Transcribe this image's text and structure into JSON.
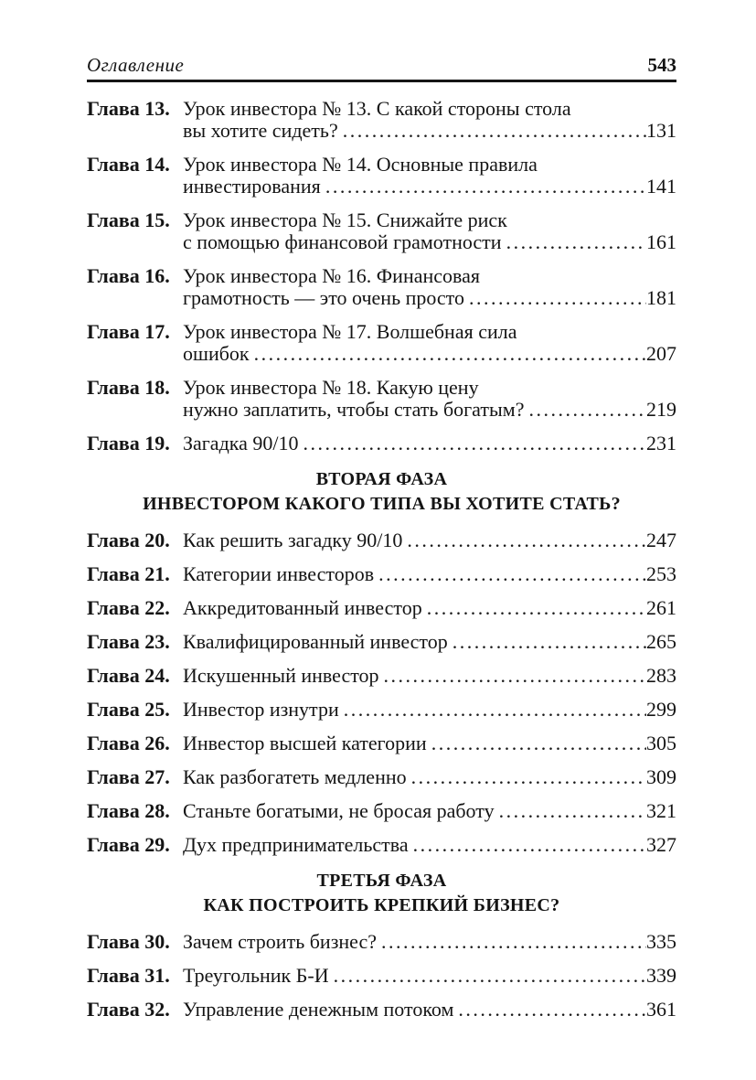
{
  "colors": {
    "page_background": "#ffffff",
    "text": "#141414",
    "header_rule": "#151515"
  },
  "header": {
    "running_title": "Оглавление",
    "page_number": "543"
  },
  "toc": {
    "items": [
      {
        "type": "entry",
        "label": "Глава 13.",
        "lines": [
          "Урок инвестора № 13. С какой стороны стола",
          "вы хотите сидеть?"
        ],
        "page": "131"
      },
      {
        "type": "entry",
        "label": "Глава 14.",
        "lines": [
          "Урок инвестора № 14. Основные правила",
          "инвестирования"
        ],
        "page": "141"
      },
      {
        "type": "entry",
        "label": "Глава 15.",
        "lines": [
          "Урок инвестора № 15. Снижайте риск",
          "с помощью финансовой грамотности"
        ],
        "page": "161"
      },
      {
        "type": "entry",
        "label": "Глава 16.",
        "lines": [
          "Урок инвестора № 16. Финансовая",
          "грамотность — это очень просто"
        ],
        "page": "181"
      },
      {
        "type": "entry",
        "label": "Глава 17.",
        "lines": [
          "Урок инвестора № 17. Волшебная сила",
          "ошибок"
        ],
        "page": "207"
      },
      {
        "type": "entry",
        "label": "Глава 18.",
        "lines": [
          "Урок инвестора № 18. Какую цену",
          "нужно заплатить, чтобы стать богатым?"
        ],
        "page": "219"
      },
      {
        "type": "entry",
        "label": "Глава 19.",
        "lines": [
          "Загадка 90/10"
        ],
        "page": "231"
      },
      {
        "type": "section",
        "lines": [
          "ВТОРАЯ ФАЗА",
          "ИНВЕСТОРОМ КАКОГО ТИПА ВЫ ХОТИТЕ СТАТЬ?"
        ]
      },
      {
        "type": "entry",
        "label": "Глава 20.",
        "lines": [
          "Как решить загадку 90/10"
        ],
        "page": "247"
      },
      {
        "type": "entry",
        "label": "Глава 21.",
        "lines": [
          "Категории инвесторов"
        ],
        "page": "253"
      },
      {
        "type": "entry",
        "label": "Глава 22.",
        "lines": [
          "Аккредитованный инвестор"
        ],
        "page": "261"
      },
      {
        "type": "entry",
        "label": "Глава 23.",
        "lines": [
          "Квалифицированный инвестор"
        ],
        "page": "265"
      },
      {
        "type": "entry",
        "label": "Глава 24.",
        "lines": [
          "Искушенный инвестор"
        ],
        "page": "283"
      },
      {
        "type": "entry",
        "label": "Глава 25.",
        "lines": [
          "Инвестор изнутри"
        ],
        "page": "299"
      },
      {
        "type": "entry",
        "label": "Глава 26.",
        "lines": [
          "Инвестор высшей категории"
        ],
        "page": "305"
      },
      {
        "type": "entry",
        "label": "Глава 27.",
        "lines": [
          "Как разбогатеть медленно"
        ],
        "page": "309"
      },
      {
        "type": "entry",
        "label": "Глава 28.",
        "lines": [
          "Станьте богатыми, не бросая работу"
        ],
        "page": "321"
      },
      {
        "type": "entry",
        "label": "Глава 29.",
        "lines": [
          "Дух предпринимательства"
        ],
        "page": "327"
      },
      {
        "type": "section",
        "lines": [
          "ТРЕТЬЯ ФАЗА",
          "КАК ПОСТРОИТЬ КРЕПКИЙ БИЗНЕС?"
        ]
      },
      {
        "type": "entry",
        "label": "Глава 30.",
        "lines": [
          "Зачем строить бизнес?"
        ],
        "page": "335"
      },
      {
        "type": "entry",
        "label": "Глава 31.",
        "lines": [
          "Треугольник Б-И"
        ],
        "page": "339"
      },
      {
        "type": "entry",
        "label": "Глава 32.",
        "lines": [
          "Управление денежным потоком"
        ],
        "page": "361"
      }
    ]
  }
}
